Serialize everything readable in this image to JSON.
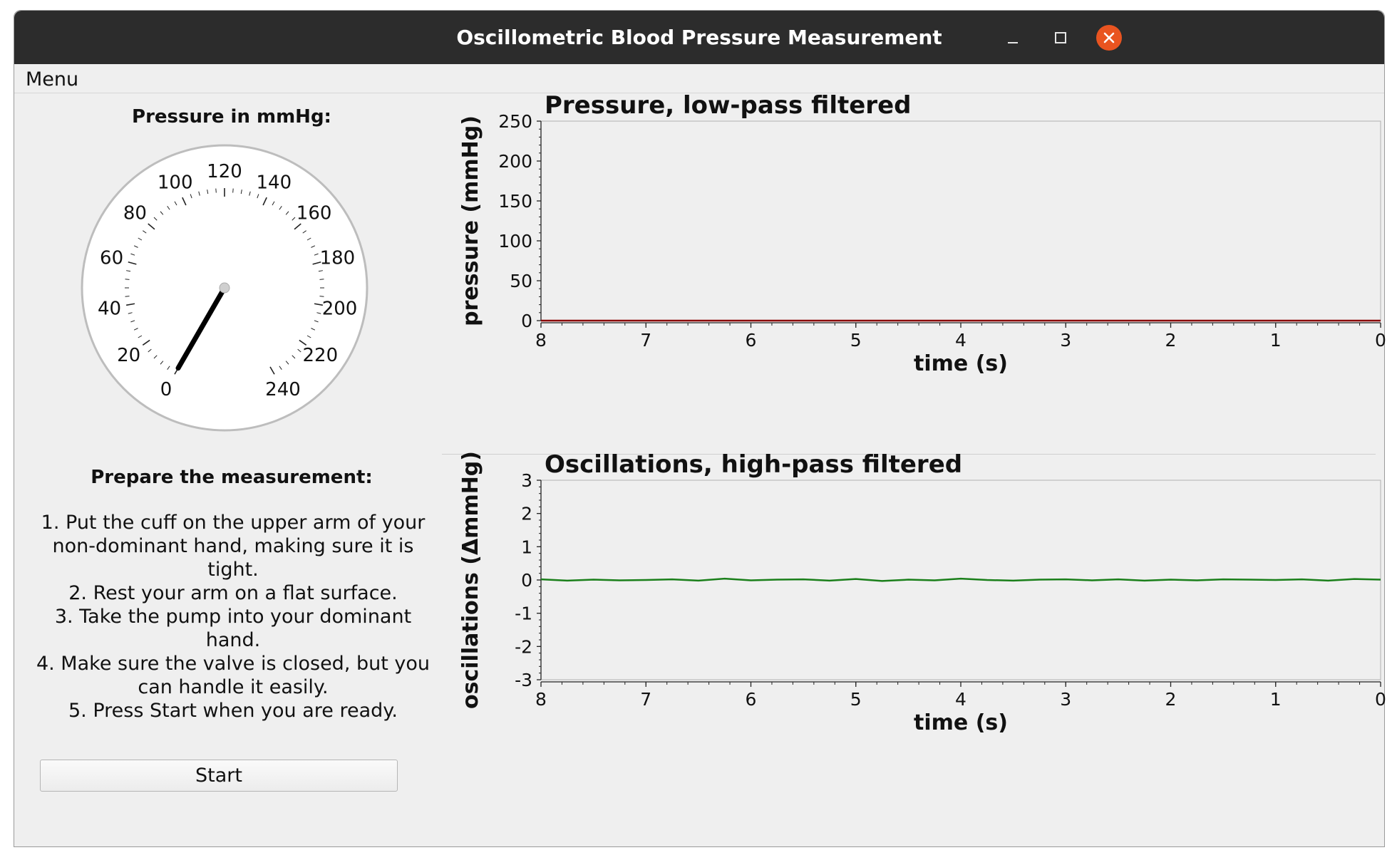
{
  "window": {
    "title": "Oscillometric Blood Pressure Measurement",
    "controls": [
      "minimize-icon",
      "maximize-icon",
      "close-icon"
    ],
    "close_color": "#e95420"
  },
  "menu": {
    "items": [
      "Menu"
    ]
  },
  "gauge": {
    "label": "Pressure in mmHg:",
    "min": 0,
    "max": 240,
    "major_step": 20,
    "minor_step": 4,
    "tick_labels": [
      "0",
      "20",
      "40",
      "60",
      "80",
      "100",
      "120",
      "140",
      "160",
      "180",
      "200",
      "220",
      "240"
    ],
    "value": 0
  },
  "instructions": {
    "title": "Prepare the measurement:",
    "steps": [
      "1. Put the cuff on the upper arm of your non-dominant hand, making sure it is tight.",
      "2. Rest your arm on a flat surface.",
      "3. Take the pump into your dominant hand.",
      "4. Make sure the valve is closed, but you can handle it easily.",
      "5. Press Start when you are ready."
    ]
  },
  "start_button": {
    "label": "Start"
  },
  "chart_data": [
    {
      "type": "line",
      "title": "Pressure, low-pass filtered",
      "xlabel": "time (s)",
      "ylabel": "pressure (mmHg)",
      "x_ticks": [
        "8",
        "7",
        "6",
        "5",
        "4",
        "3",
        "2",
        "1",
        "0"
      ],
      "y_ticks": [
        "0",
        "50",
        "100",
        "150",
        "200",
        "250"
      ],
      "xlim": [
        8,
        0
      ],
      "ylim": [
        0,
        250
      ],
      "series": [
        {
          "color": "#8b0000",
          "x": [
            8,
            0
          ],
          "y": [
            0,
            0
          ]
        }
      ]
    },
    {
      "type": "line",
      "title": "Oscillations, high-pass filtered",
      "xlabel": "time (s)",
      "ylabel": "oscillations (ΔmmHg)",
      "x_ticks": [
        "8",
        "7",
        "6",
        "5",
        "4",
        "3",
        "2",
        "1",
        "0"
      ],
      "y_ticks": [
        "3",
        "2",
        "1",
        "0",
        "-1",
        "-2",
        "-3"
      ],
      "xlim": [
        8,
        0
      ],
      "ylim": [
        -3,
        3
      ],
      "series": [
        {
          "color": "#1a7f1a",
          "x": [
            8,
            7.75,
            7.5,
            7.25,
            7,
            6.75,
            6.5,
            6.25,
            6,
            5.75,
            5.5,
            5.25,
            5,
            4.75,
            4.5,
            4.25,
            4,
            3.75,
            3.5,
            3.25,
            3,
            2.75,
            2.5,
            2.25,
            2,
            1.75,
            1.5,
            1.25,
            1,
            0.75,
            0.5,
            0.25,
            0
          ],
          "y": [
            0.02,
            -0.02,
            0.01,
            -0.01,
            0.0,
            0.02,
            -0.02,
            0.04,
            -0.01,
            0.01,
            0.02,
            -0.02,
            0.03,
            -0.03,
            0.01,
            -0.01,
            0.04,
            0.0,
            -0.02,
            0.01,
            0.02,
            -0.01,
            0.02,
            -0.02,
            0.01,
            -0.01,
            0.02,
            0.01,
            0.0,
            0.02,
            -0.02,
            0.03,
            0.01
          ]
        }
      ]
    }
  ]
}
